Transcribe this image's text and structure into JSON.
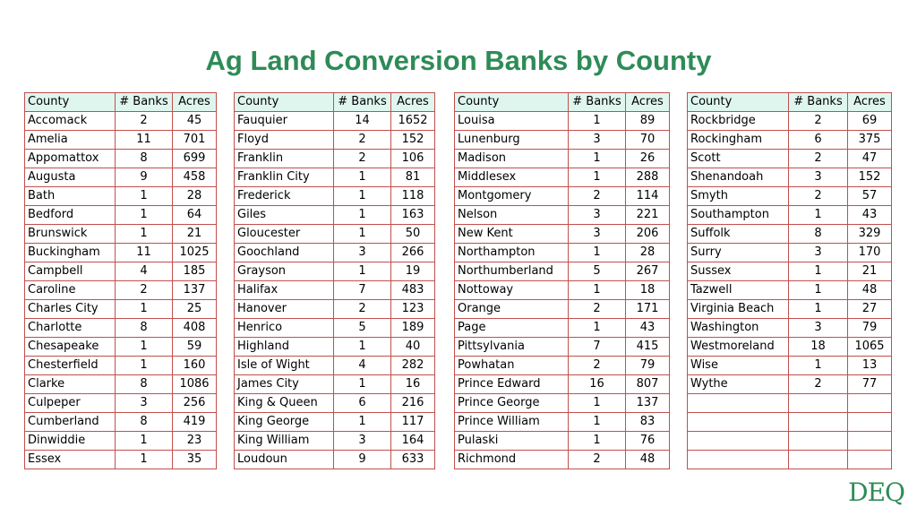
{
  "title": "Ag Land Conversion Banks by County",
  "headers": [
    "County",
    "# Banks",
    "Acres"
  ],
  "tables": [
    {
      "rows": [
        [
          "Accomack",
          "2",
          "45"
        ],
        [
          "Amelia",
          "11",
          "701"
        ],
        [
          "Appomattox",
          "8",
          "699"
        ],
        [
          "Augusta",
          "9",
          "458"
        ],
        [
          "Bath",
          "1",
          "28"
        ],
        [
          "Bedford",
          "1",
          "64"
        ],
        [
          "Brunswick",
          "1",
          "21"
        ],
        [
          "Buckingham",
          "11",
          "1025"
        ],
        [
          "Campbell",
          "4",
          "185"
        ],
        [
          "Caroline",
          "2",
          "137"
        ],
        [
          "Charles City",
          "1",
          "25"
        ],
        [
          "Charlotte",
          "8",
          "408"
        ],
        [
          "Chesapeake",
          "1",
          "59"
        ],
        [
          "Chesterfield",
          "1",
          "160"
        ],
        [
          "Clarke",
          "8",
          "1086"
        ],
        [
          "Culpeper",
          "3",
          "256"
        ],
        [
          "Cumberland",
          "8",
          "419"
        ],
        [
          "Dinwiddie",
          "1",
          "23"
        ],
        [
          "Essex",
          "1",
          "35"
        ]
      ]
    },
    {
      "rows": [
        [
          "Fauquier",
          "14",
          "1652"
        ],
        [
          "Floyd",
          "2",
          "152"
        ],
        [
          "Franklin",
          "2",
          "106"
        ],
        [
          "Franklin City",
          "1",
          "81"
        ],
        [
          "Frederick",
          "1",
          "118"
        ],
        [
          "Giles",
          "1",
          "163"
        ],
        [
          "Gloucester",
          "1",
          "50"
        ],
        [
          "Goochland",
          "3",
          "266"
        ],
        [
          "Grayson",
          "1",
          "19"
        ],
        [
          "Halifax",
          "7",
          "483"
        ],
        [
          "Hanover",
          "2",
          "123"
        ],
        [
          "Henrico",
          "5",
          "189"
        ],
        [
          "Highland",
          "1",
          "40"
        ],
        [
          "Isle of Wight",
          "4",
          "282"
        ],
        [
          "James City",
          "1",
          "16"
        ],
        [
          "King & Queen",
          "6",
          "216"
        ],
        [
          "King George",
          "1",
          "117"
        ],
        [
          "King William",
          "3",
          "164"
        ],
        [
          "Loudoun",
          "9",
          "633"
        ]
      ]
    },
    {
      "rows": [
        [
          "Louisa",
          "1",
          "89"
        ],
        [
          "Lunenburg",
          "3",
          "70"
        ],
        [
          "Madison",
          "1",
          "26"
        ],
        [
          "Middlesex",
          "1",
          "288"
        ],
        [
          "Montgomery",
          "2",
          "114"
        ],
        [
          "Nelson",
          "3",
          "221"
        ],
        [
          "New Kent",
          "3",
          "206"
        ],
        [
          "Northampton",
          "1",
          "28"
        ],
        [
          "Northumberland",
          "5",
          "267"
        ],
        [
          "Nottoway",
          "1",
          "18"
        ],
        [
          "Orange",
          "2",
          "171"
        ],
        [
          "Page",
          "1",
          "43"
        ],
        [
          "Pittsylvania",
          "7",
          "415"
        ],
        [
          "Powhatan",
          "2",
          "79"
        ],
        [
          "Prince Edward",
          "16",
          "807"
        ],
        [
          "Prince George",
          "1",
          "137"
        ],
        [
          "Prince William",
          "1",
          "83"
        ],
        [
          "Pulaski",
          "1",
          "76"
        ],
        [
          "Richmond",
          "2",
          "48"
        ]
      ]
    },
    {
      "rows": [
        [
          "Rockbridge",
          "2",
          "69"
        ],
        [
          "Rockingham",
          "6",
          "375"
        ],
        [
          "Scott",
          "2",
          "47"
        ],
        [
          "Shenandoah",
          "3",
          "152"
        ],
        [
          "Smyth",
          "2",
          "57"
        ],
        [
          "Southampton",
          "1",
          "43"
        ],
        [
          "Suffolk",
          "8",
          "329"
        ],
        [
          "Surry",
          "3",
          "170"
        ],
        [
          "Sussex",
          "1",
          "21"
        ],
        [
          "Tazwell",
          "1",
          "48"
        ],
        [
          "Virginia Beach",
          "1",
          "27"
        ],
        [
          "Washington",
          "3",
          "79"
        ],
        [
          "Westmoreland",
          "18",
          "1065"
        ],
        [
          "Wise",
          "1",
          "13"
        ],
        [
          "Wythe",
          "2",
          "77"
        ],
        [
          "",
          "",
          ""
        ],
        [
          "",
          "",
          ""
        ],
        [
          "",
          "",
          ""
        ],
        [
          "",
          "",
          ""
        ]
      ]
    }
  ],
  "logo": "DEQ"
}
